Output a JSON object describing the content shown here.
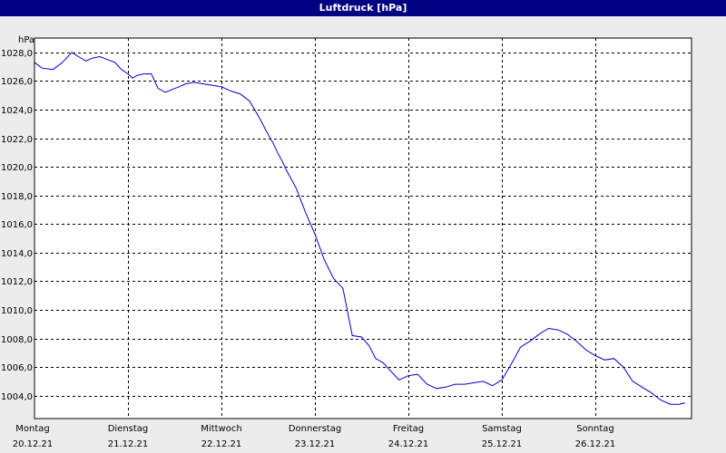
{
  "chart_data": {
    "type": "line",
    "title": "Luftdruck [hPa]",
    "y_unit_label": "hPa",
    "ylim": [
      1002.4,
      1029.0
    ],
    "y_ticks": [
      "1004,0",
      "1006,0",
      "1008,0",
      "1010,0",
      "1012,0",
      "1014,0",
      "1016,0",
      "1018,0",
      "1020,0",
      "1022,0",
      "1024,0",
      "1026,0",
      "1028,0"
    ],
    "y_tick_values": [
      1004,
      1006,
      1008,
      1010,
      1012,
      1014,
      1016,
      1018,
      1020,
      1022,
      1024,
      1026,
      1028
    ],
    "x_range_days": [
      0,
      7
    ],
    "x_ticks": [
      {
        "day": "Montag",
        "date": "20.12.21"
      },
      {
        "day": "Dienstag",
        "date": "21.12.21"
      },
      {
        "day": "Mittwoch",
        "date": "22.12.21"
      },
      {
        "day": "Donnerstag",
        "date": "23.12.21"
      },
      {
        "day": "Freitag",
        "date": "24.12.21"
      },
      {
        "day": "Samstag",
        "date": "25.12.21"
      },
      {
        "day": "Sonntag",
        "date": "26.12.21"
      }
    ],
    "grid": true,
    "line_color": "#0000cc",
    "series": [
      {
        "x": [
          0.0,
          0.08,
          0.2,
          0.3,
          0.4,
          0.47,
          0.55,
          0.62,
          0.7,
          0.78,
          0.86,
          0.93,
          1.0,
          1.05,
          1.1,
          1.17,
          1.25,
          1.32,
          1.4,
          1.47,
          1.55,
          1.62,
          1.7,
          1.8,
          1.9,
          2.0,
          2.1,
          2.2,
          2.3,
          2.4,
          2.48,
          2.55,
          2.6,
          2.65,
          2.7,
          2.8,
          2.9,
          3.0,
          3.1,
          3.2,
          3.3,
          3.4,
          3.5,
          3.58,
          3.65,
          3.73,
          3.8,
          3.9,
          4.0,
          4.1,
          4.2,
          4.3,
          4.4,
          4.5,
          4.6,
          4.7,
          4.8,
          4.9,
          5.0,
          5.1,
          5.2,
          5.3,
          5.4,
          5.5,
          5.6,
          5.7,
          5.8,
          5.9,
          6.0,
          6.1,
          6.2,
          6.3,
          6.4,
          6.5,
          6.6,
          6.7,
          6.8,
          6.9,
          6.96
        ],
        "y": [
          1027.3,
          1026.9,
          1026.8,
          1027.3,
          1028.0,
          1027.7,
          1027.4,
          1027.6,
          1027.7,
          1027.5,
          1027.3,
          1026.8,
          1026.5,
          1026.2,
          1026.4,
          1026.5,
          1026.5,
          1025.5,
          1025.2,
          1025.4,
          1025.6,
          1025.8,
          1025.9,
          1025.8,
          1025.7,
          1025.6,
          1025.3,
          1025.1,
          1024.6,
          1023.5,
          1022.5,
          1021.7,
          1021.0,
          1020.4,
          1019.7,
          1018.5,
          1016.8,
          1015.3,
          1013.5,
          1012.2,
          1011.5,
          1008.2,
          1008.1,
          1007.5,
          1006.6,
          1006.3,
          1005.8,
          1005.1,
          1005.4,
          1005.5,
          1004.8,
          1004.5,
          1004.6,
          1004.8,
          1004.8,
          1004.9,
          1005.0,
          1004.7,
          1005.1,
          1006.2,
          1007.4,
          1007.8,
          1008.3,
          1008.7,
          1008.6,
          1008.3,
          1007.8,
          1007.2,
          1006.8,
          1006.5,
          1006.6,
          1006.0,
          1005.0,
          1004.6,
          1004.2,
          1003.7,
          1003.4,
          1003.4,
          1003.5
        ]
      }
    ]
  }
}
